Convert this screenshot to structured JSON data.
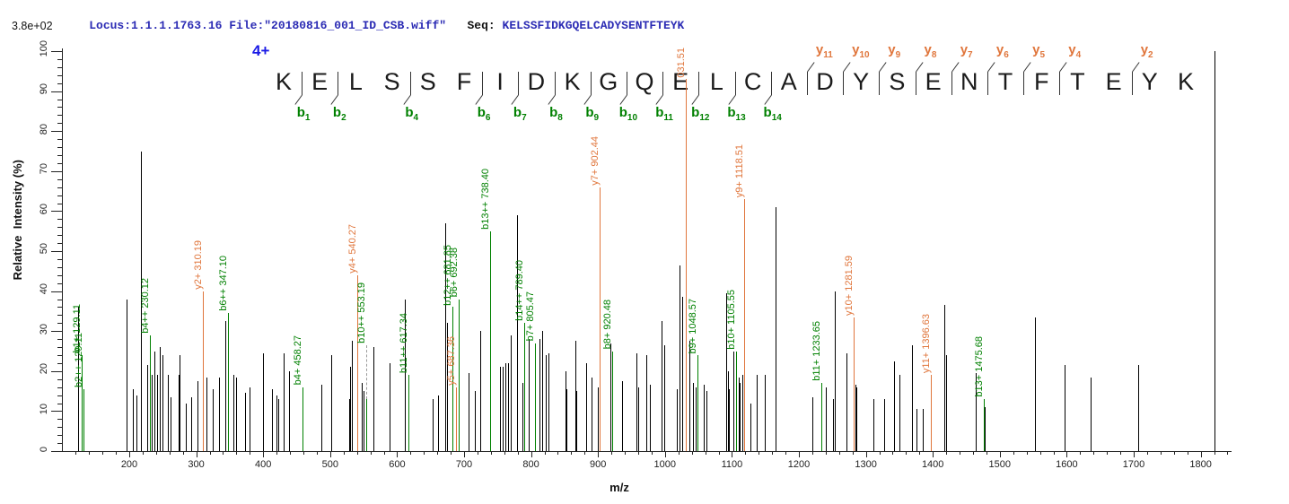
{
  "header": {
    "locus_file": "Locus:1.1.1.1763.16 File:\"20180816_001_ID_CSB.wiff\"",
    "seq_label": "   Seq: ",
    "sequence_text": "KELSSFIDKGQELCADYSENTFTEYK"
  },
  "scale_label": "3.8e+02",
  "charge_label": "4+",
  "peptide": {
    "sequence": "KELSSFIDKGQELCADYSENTFTEYK",
    "b_ion_positions": [
      1,
      2,
      4,
      6,
      7,
      8,
      9,
      10,
      11,
      12,
      13,
      14
    ],
    "y_ion_positions": [
      11,
      10,
      9,
      8,
      7,
      6,
      5,
      4,
      2
    ]
  },
  "colors": {
    "peak": "#000000",
    "b_ion": "#008000",
    "y_ion": "#e0763c",
    "header_blue": "#2b2bb4",
    "charge_blue": "#1a1ae6",
    "axis": "#222222",
    "leader_gray": "#9a9a9a"
  },
  "chart_data": {
    "type": "bar",
    "subtype": "ms2-stick-spectrum",
    "xlabel": "m/z",
    "ylabel": "Relative  Intensity (%)",
    "xlim": [
      100,
      1845
    ],
    "ylim": [
      0,
      100
    ],
    "x_ticks": [
      200,
      300,
      400,
      500,
      600,
      700,
      800,
      900,
      1000,
      1100,
      1200,
      1300,
      1400,
      1500,
      1600,
      1700,
      1800
    ],
    "y_ticks": [
      0,
      10,
      20,
      30,
      40,
      50,
      60,
      70,
      80,
      90,
      100
    ],
    "x_minor_step": 20,
    "y_minor_step": 2,
    "grid": false,
    "absolute_intensity_max": "3.8e+02",
    "precursor_charge": "4+",
    "peaks": [
      {
        "mz": 123.0,
        "i": 36,
        "c": "k"
      },
      {
        "mz": 129.11,
        "i": 24,
        "c": "g",
        "label": "b1+ 129.11"
      },
      {
        "mz": 131.0,
        "i": 15.5,
        "c": "g",
        "label": "b2++ 129.11"
      },
      {
        "mz": 196,
        "i": 38,
        "c": "k"
      },
      {
        "mz": 205,
        "i": 15.5,
        "c": "k"
      },
      {
        "mz": 210,
        "i": 14,
        "c": "k"
      },
      {
        "mz": 218,
        "i": 75,
        "c": "k"
      },
      {
        "mz": 227,
        "i": 21.5,
        "c": "k"
      },
      {
        "mz": 230.12,
        "i": 29,
        "c": "g",
        "label": "b4++ 230.12"
      },
      {
        "mz": 234,
        "i": 19,
        "c": "k"
      },
      {
        "mz": 237.5,
        "i": 25,
        "c": "k"
      },
      {
        "mz": 241,
        "i": 19,
        "c": "k"
      },
      {
        "mz": 245.5,
        "i": 26,
        "c": "k"
      },
      {
        "mz": 250,
        "i": 24,
        "c": "k"
      },
      {
        "mz": 257,
        "i": 19,
        "c": "k"
      },
      {
        "mz": 262,
        "i": 13.5,
        "c": "k"
      },
      {
        "mz": 273,
        "i": 19,
        "c": "k"
      },
      {
        "mz": 275,
        "i": 24,
        "c": "k"
      },
      {
        "mz": 285,
        "i": 12,
        "c": "k"
      },
      {
        "mz": 292,
        "i": 13.5,
        "c": "k"
      },
      {
        "mz": 302,
        "i": 17.5,
        "c": "k"
      },
      {
        "mz": 310.19,
        "i": 40,
        "c": "o",
        "label": "y2+ 310.19"
      },
      {
        "mz": 315,
        "i": 18.5,
        "c": "k"
      },
      {
        "mz": 324,
        "i": 15.5,
        "c": "k"
      },
      {
        "mz": 334,
        "i": 18.5,
        "c": "k"
      },
      {
        "mz": 344,
        "i": 32.5,
        "c": "k"
      },
      {
        "mz": 347.1,
        "i": 34.5,
        "c": "g",
        "label": "b6++ 347.10"
      },
      {
        "mz": 355,
        "i": 19,
        "c": "k"
      },
      {
        "mz": 359.5,
        "i": 18.5,
        "c": "k"
      },
      {
        "mz": 373,
        "i": 14.5,
        "c": "k"
      },
      {
        "mz": 380,
        "i": 16,
        "c": "k"
      },
      {
        "mz": 400,
        "i": 24.5,
        "c": "k"
      },
      {
        "mz": 413.5,
        "i": 15.5,
        "c": "k"
      },
      {
        "mz": 420,
        "i": 14,
        "c": "k"
      },
      {
        "mz": 423,
        "i": 13,
        "c": "k"
      },
      {
        "mz": 430,
        "i": 24.5,
        "c": "k"
      },
      {
        "mz": 439,
        "i": 20,
        "c": "k"
      },
      {
        "mz": 458.27,
        "i": 16,
        "c": "g",
        "label": "b4+ 458.27"
      },
      {
        "mz": 486.5,
        "i": 16.5,
        "c": "k"
      },
      {
        "mz": 501.5,
        "i": 24,
        "c": "k"
      },
      {
        "mz": 528,
        "i": 13,
        "c": "k"
      },
      {
        "mz": 530,
        "i": 21,
        "c": "k"
      },
      {
        "mz": 532,
        "i": 27.5,
        "c": "k"
      },
      {
        "mz": 540.27,
        "i": 44,
        "c": "o",
        "label": "y4+ 540.27"
      },
      {
        "mz": 547,
        "i": 17,
        "c": "k"
      },
      {
        "mz": 550,
        "i": 15,
        "c": "k"
      },
      {
        "mz": 553.19,
        "i": 13,
        "c": "g",
        "label": "b10++ 553.19",
        "leader": 60
      },
      {
        "mz": 565,
        "i": 26,
        "c": "k"
      },
      {
        "mz": 589,
        "i": 22,
        "c": "k"
      },
      {
        "mz": 612,
        "i": 38,
        "c": "k"
      },
      {
        "mz": 617.34,
        "i": 19,
        "c": "g",
        "label": "b11++ 617.34"
      },
      {
        "mz": 653,
        "i": 13,
        "c": "k"
      },
      {
        "mz": 661,
        "i": 14,
        "c": "k"
      },
      {
        "mz": 672,
        "i": 57,
        "c": "k"
      },
      {
        "mz": 674,
        "i": 32,
        "c": "k"
      },
      {
        "mz": 681.85,
        "i": 36,
        "c": "g",
        "label": "b12++ 681.85"
      },
      {
        "mz": 687.36,
        "i": 16,
        "c": "o",
        "label": "y5+ 687.36"
      },
      {
        "mz": 692.38,
        "i": 38,
        "c": "g",
        "label": "b6+ 692.38"
      },
      {
        "mz": 707,
        "i": 19.5,
        "c": "k"
      },
      {
        "mz": 716,
        "i": 15,
        "c": "k"
      },
      {
        "mz": 724.5,
        "i": 30,
        "c": "k"
      },
      {
        "mz": 738.4,
        "i": 55,
        "c": "g",
        "label": "b13++ 738.40"
      },
      {
        "mz": 753,
        "i": 21,
        "c": "k"
      },
      {
        "mz": 757,
        "i": 21,
        "c": "k"
      },
      {
        "mz": 762,
        "i": 22,
        "c": "k"
      },
      {
        "mz": 765,
        "i": 22,
        "c": "k"
      },
      {
        "mz": 770,
        "i": 29,
        "c": "k"
      },
      {
        "mz": 778.5,
        "i": 59,
        "c": "k"
      },
      {
        "mz": 786.5,
        "i": 17,
        "c": "k"
      },
      {
        "mz": 789.4,
        "i": 32,
        "c": "g",
        "label": "b14++ 789.40"
      },
      {
        "mz": 797,
        "i": 28,
        "c": "k"
      },
      {
        "mz": 805.47,
        "i": 27,
        "c": "g",
        "label": "b7+ 805.47"
      },
      {
        "mz": 812,
        "i": 28,
        "c": "k"
      },
      {
        "mz": 817,
        "i": 30,
        "c": "k"
      },
      {
        "mz": 822,
        "i": 24,
        "c": "k"
      },
      {
        "mz": 826,
        "i": 24.5,
        "c": "k"
      },
      {
        "mz": 851,
        "i": 20,
        "c": "k"
      },
      {
        "mz": 853,
        "i": 15.5,
        "c": "k"
      },
      {
        "mz": 866,
        "i": 27.5,
        "c": "k"
      },
      {
        "mz": 868,
        "i": 15,
        "c": "k"
      },
      {
        "mz": 882.5,
        "i": 22,
        "c": "k"
      },
      {
        "mz": 890.5,
        "i": 18.5,
        "c": "k"
      },
      {
        "mz": 900,
        "i": 16,
        "c": "k"
      },
      {
        "mz": 902.44,
        "i": 66,
        "c": "o",
        "label": "y7+ 902.44"
      },
      {
        "mz": 918.5,
        "i": 27,
        "c": "k"
      },
      {
        "mz": 920.48,
        "i": 25,
        "c": "g",
        "label": "b8+ 920.48"
      },
      {
        "mz": 936,
        "i": 17.5,
        "c": "k"
      },
      {
        "mz": 957,
        "i": 24.5,
        "c": "k"
      },
      {
        "mz": 960,
        "i": 16,
        "c": "k"
      },
      {
        "mz": 971.5,
        "i": 24,
        "c": "k"
      },
      {
        "mz": 977,
        "i": 16.5,
        "c": "k"
      },
      {
        "mz": 995,
        "i": 32.5,
        "c": "k"
      },
      {
        "mz": 999,
        "i": 26.5,
        "c": "k"
      },
      {
        "mz": 1018,
        "i": 15.5,
        "c": "k"
      },
      {
        "mz": 1021.5,
        "i": 46.5,
        "c": "k"
      },
      {
        "mz": 1026,
        "i": 38.5,
        "c": "k"
      },
      {
        "mz": 1031.51,
        "i": 93,
        "c": "o",
        "label": "031.51"
      },
      {
        "mz": 1036.5,
        "i": 27.5,
        "c": "k"
      },
      {
        "mz": 1042,
        "i": 17,
        "c": "k"
      },
      {
        "mz": 1046,
        "i": 16,
        "c": "k"
      },
      {
        "mz": 1048.57,
        "i": 24,
        "c": "g",
        "label": "b9+ 1048.57"
      },
      {
        "mz": 1058,
        "i": 16.5,
        "c": "k"
      },
      {
        "mz": 1062,
        "i": 15,
        "c": "k"
      },
      {
        "mz": 1092,
        "i": 39.5,
        "c": "k"
      },
      {
        "mz": 1094,
        "i": 20,
        "c": "k"
      },
      {
        "mz": 1096,
        "i": 15.5,
        "c": "k"
      },
      {
        "mz": 1102,
        "i": 25,
        "c": "k"
      },
      {
        "mz": 1105.55,
        "i": 25,
        "c": "g",
        "label": "b10+ 1105.55"
      },
      {
        "mz": 1110,
        "i": 18.5,
        "c": "k"
      },
      {
        "mz": 1112,
        "i": 17,
        "c": "k"
      },
      {
        "mz": 1116,
        "i": 19,
        "c": "k"
      },
      {
        "mz": 1118.51,
        "i": 63,
        "c": "o",
        "label": "y9+ 1118.51"
      },
      {
        "mz": 1128,
        "i": 12,
        "c": "k"
      },
      {
        "mz": 1136.5,
        "i": 19,
        "c": "k"
      },
      {
        "mz": 1148.5,
        "i": 19,
        "c": "k"
      },
      {
        "mz": 1165,
        "i": 61,
        "c": "k"
      },
      {
        "mz": 1220,
        "i": 13.5,
        "c": "k"
      },
      {
        "mz": 1233.65,
        "i": 17,
        "c": "g",
        "label": "b11+ 1233.65"
      },
      {
        "mz": 1240,
        "i": 16,
        "c": "k"
      },
      {
        "mz": 1251,
        "i": 13,
        "c": "k"
      },
      {
        "mz": 1253.5,
        "i": 40,
        "c": "k"
      },
      {
        "mz": 1270.5,
        "i": 24.5,
        "c": "k"
      },
      {
        "mz": 1281.59,
        "i": 33.5,
        "c": "o",
        "label": "y10+ 1281.59"
      },
      {
        "mz": 1284,
        "i": 16.5,
        "c": "k"
      },
      {
        "mz": 1286,
        "i": 16,
        "c": "k"
      },
      {
        "mz": 1311,
        "i": 13,
        "c": "k"
      },
      {
        "mz": 1327,
        "i": 13,
        "c": "k"
      },
      {
        "mz": 1342,
        "i": 22.5,
        "c": "k"
      },
      {
        "mz": 1350,
        "i": 19,
        "c": "k"
      },
      {
        "mz": 1369,
        "i": 26.5,
        "c": "k"
      },
      {
        "mz": 1376,
        "i": 10.5,
        "c": "k"
      },
      {
        "mz": 1385,
        "i": 10.5,
        "c": "k"
      },
      {
        "mz": 1396.63,
        "i": 19,
        "c": "o",
        "label": "y11+ 1396.63"
      },
      {
        "mz": 1417.5,
        "i": 36.5,
        "c": "k"
      },
      {
        "mz": 1419.5,
        "i": 24,
        "c": "k"
      },
      {
        "mz": 1464,
        "i": 19.5,
        "c": "k"
      },
      {
        "mz": 1475.68,
        "i": 13,
        "c": "g",
        "label": "b13+ 1475.68"
      },
      {
        "mz": 1478,
        "i": 11,
        "c": "k"
      },
      {
        "mz": 1553,
        "i": 33.5,
        "c": "k"
      },
      {
        "mz": 1597,
        "i": 21.5,
        "c": "k"
      },
      {
        "mz": 1635,
        "i": 18.5,
        "c": "k"
      },
      {
        "mz": 1707,
        "i": 21.5,
        "c": "k"
      },
      {
        "mz": 1820,
        "i": 100,
        "c": "k"
      }
    ]
  }
}
